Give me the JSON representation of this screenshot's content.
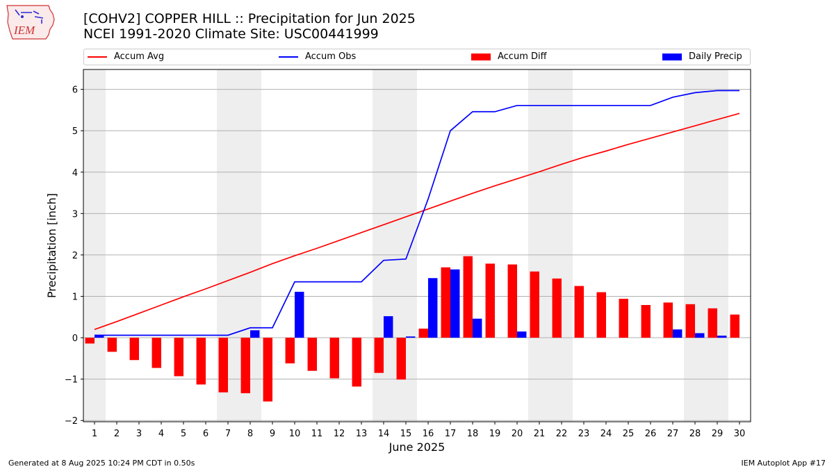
{
  "title": {
    "line1": "[COHV2] COPPER HILL :: Precipitation for Jun 2025",
    "line2": "NCEI 1991-2020 Climate Site: USC00441999"
  },
  "logo": {
    "text": "IEM",
    "icon": "iowa-state-outline-logo"
  },
  "footer": {
    "left": "Generated at 8 Aug 2025 10:24 PM CDT in 0.50s",
    "right": "IEM Autoplot App #17"
  },
  "colors": {
    "accum_avg": "#ff0000",
    "accum_obs": "#0000ff",
    "accum_diff": "#ff0000",
    "daily_precip": "#0000ff",
    "weekend_shade": "#eeeeee",
    "grid": "#b0b0b0"
  },
  "chart_data": {
    "type": "bar",
    "xlabel": "June 2025",
    "ylabel": "Precipitation [inch]",
    "ylim": [
      -2.03,
      6.48
    ],
    "yticks": [
      -2,
      -1,
      0,
      1,
      2,
      3,
      4,
      5,
      6
    ],
    "ytick_labels": [
      "−2",
      "−1",
      "0",
      "1",
      "2",
      "3",
      "4",
      "5",
      "6"
    ],
    "grid": "horizontal",
    "legend_placement": "top",
    "categories": [
      "1",
      "2",
      "3",
      "4",
      "5",
      "6",
      "7",
      "8",
      "9",
      "10",
      "11",
      "12",
      "13",
      "14",
      "15",
      "16",
      "17",
      "18",
      "19",
      "20",
      "21",
      "22",
      "23",
      "24",
      "25",
      "26",
      "27",
      "28",
      "29",
      "30"
    ],
    "weekend_shading": [
      [
        1,
        1
      ],
      [
        7,
        8
      ],
      [
        14,
        15
      ],
      [
        21,
        22
      ],
      [
        28,
        29
      ]
    ],
    "series": [
      {
        "name": "Accum Avg",
        "kind": "line",
        "values": [
          0.2,
          0.39,
          0.59,
          0.79,
          0.99,
          1.18,
          1.38,
          1.58,
          1.79,
          1.98,
          2.16,
          2.35,
          2.54,
          2.73,
          2.92,
          3.11,
          3.3,
          3.49,
          3.67,
          3.84,
          4.01,
          4.19,
          4.36,
          4.51,
          4.67,
          4.82,
          4.97,
          5.12,
          5.27,
          5.42
        ]
      },
      {
        "name": "Accum Obs",
        "kind": "line",
        "values": [
          0.06,
          0.06,
          0.06,
          0.06,
          0.06,
          0.06,
          0.06,
          0.24,
          0.24,
          1.35,
          1.35,
          1.35,
          1.35,
          1.87,
          1.9,
          3.35,
          5.0,
          5.46,
          5.46,
          5.61,
          5.61,
          5.61,
          5.61,
          5.61,
          5.61,
          5.61,
          5.81,
          5.92,
          5.97,
          5.97
        ]
      },
      {
        "name": "Accum Diff",
        "kind": "bar",
        "values": [
          -0.14,
          -0.34,
          -0.54,
          -0.73,
          -0.93,
          -1.13,
          -1.32,
          -1.34,
          -1.54,
          -0.62,
          -0.8,
          -0.98,
          -1.18,
          -0.85,
          -1.01,
          0.22,
          1.7,
          1.97,
          1.79,
          1.77,
          1.6,
          1.43,
          1.25,
          1.1,
          0.94,
          0.79,
          0.85,
          0.81,
          0.71,
          0.56
        ]
      },
      {
        "name": "Daily Precip",
        "kind": "bar",
        "values": [
          0.06,
          0,
          0,
          0,
          0,
          0,
          0,
          0.18,
          0,
          1.11,
          0,
          0,
          0,
          0.52,
          0.03,
          1.44,
          1.65,
          0.46,
          0,
          0.15,
          0,
          0,
          0,
          0,
          0,
          0,
          0.2,
          0.11,
          0.05,
          0
        ]
      }
    ]
  }
}
